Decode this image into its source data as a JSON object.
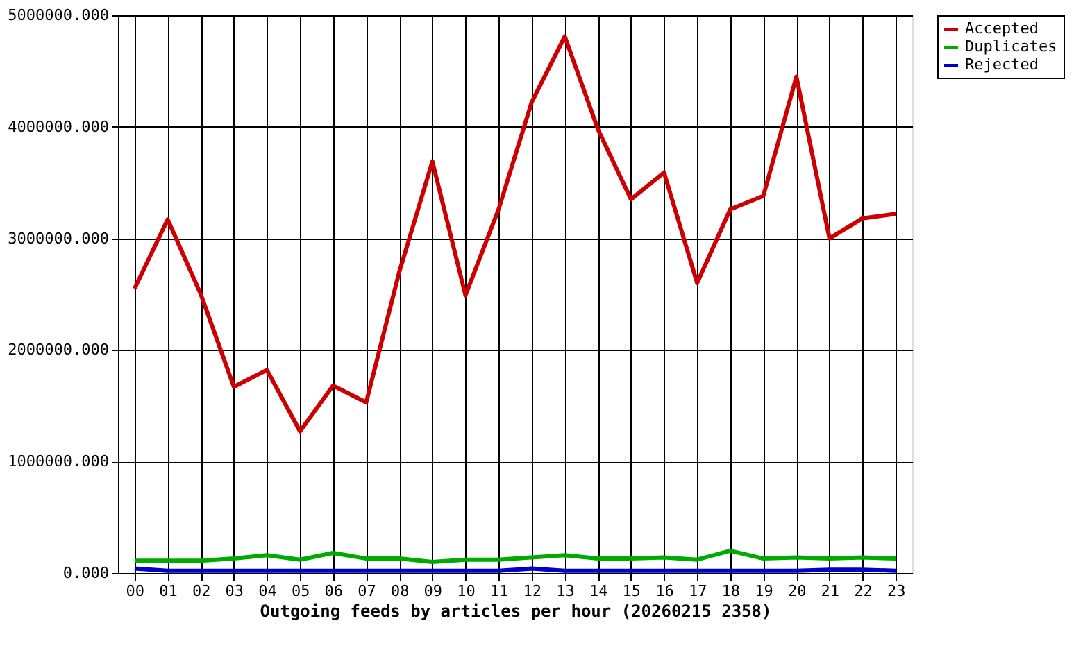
{
  "chart_data": {
    "type": "line",
    "xlabel": "Outgoing feeds by articles per hour (20260215 2358)",
    "categories": [
      "00",
      "01",
      "02",
      "03",
      "04",
      "05",
      "06",
      "07",
      "08",
      "09",
      "10",
      "11",
      "12",
      "13",
      "14",
      "15",
      "16",
      "17",
      "18",
      "19",
      "20",
      "21",
      "22",
      "23"
    ],
    "series": [
      {
        "name": "Accepted",
        "color": "#cc0000",
        "values": [
          2550000,
          3170000,
          2500000,
          1670000,
          1820000,
          1270000,
          1680000,
          1530000,
          2700000,
          3690000,
          2490000,
          3260000,
          4220000,
          4810000,
          3980000,
          3350000,
          3590000,
          2600000,
          3260000,
          3380000,
          4450000,
          3000000,
          3180000,
          3220000
        ]
      },
      {
        "name": "Duplicates",
        "color": "#00aa00",
        "values": [
          110000,
          110000,
          110000,
          130000,
          160000,
          120000,
          180000,
          130000,
          130000,
          100000,
          120000,
          120000,
          140000,
          160000,
          130000,
          130000,
          140000,
          120000,
          200000,
          130000,
          140000,
          130000,
          140000,
          130000
        ]
      },
      {
        "name": "Rejected",
        "color": "#0000cc",
        "values": [
          40000,
          20000,
          20000,
          20000,
          20000,
          20000,
          20000,
          20000,
          20000,
          20000,
          20000,
          20000,
          40000,
          20000,
          20000,
          20000,
          20000,
          20000,
          20000,
          20000,
          20000,
          30000,
          30000,
          20000
        ]
      }
    ],
    "ylim": [
      0,
      5000000
    ],
    "yticks": [
      {
        "value": 0,
        "label": "0.000"
      },
      {
        "value": 1000000,
        "label": "1000000.000"
      },
      {
        "value": 2000000,
        "label": "2000000.000"
      },
      {
        "value": 3000000,
        "label": "3000000.000"
      },
      {
        "value": 4000000,
        "label": "4000000.000"
      },
      {
        "value": 5000000,
        "label": "5000000.000"
      }
    ],
    "grid": true,
    "legend": "top right",
    "marker": "none",
    "line_style": "solid"
  }
}
